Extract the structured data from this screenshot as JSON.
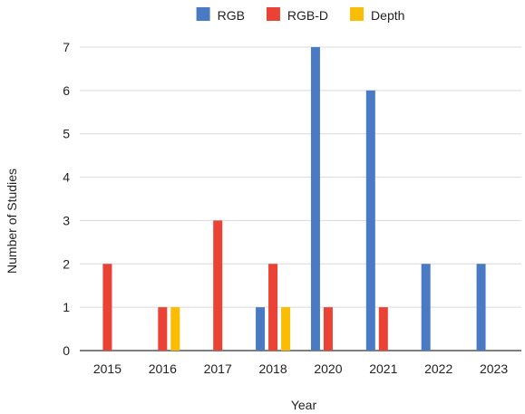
{
  "chart_data": {
    "type": "bar",
    "xlabel": "Year",
    "ylabel": "Number of Studies",
    "categories": [
      "2015",
      "2016",
      "2017",
      "2018",
      "2020",
      "2021",
      "2022",
      "2023"
    ],
    "series": [
      {
        "name": "RGB",
        "color": "#4a7ac4",
        "values": [
          0,
          0,
          0,
          1,
          7,
          6,
          2,
          2
        ]
      },
      {
        "name": "RGB-D",
        "color": "#ea4335",
        "values": [
          2,
          1,
          3,
          2,
          1,
          1,
          0,
          0
        ]
      },
      {
        "name": "Depth",
        "color": "#fbbc04",
        "values": [
          0,
          1,
          0,
          1,
          0,
          0,
          0,
          0
        ]
      }
    ],
    "ylim": [
      0,
      7
    ],
    "yticks": [
      0,
      1,
      2,
      3,
      4,
      5,
      6,
      7
    ],
    "grid": true,
    "legend_position": "top"
  }
}
